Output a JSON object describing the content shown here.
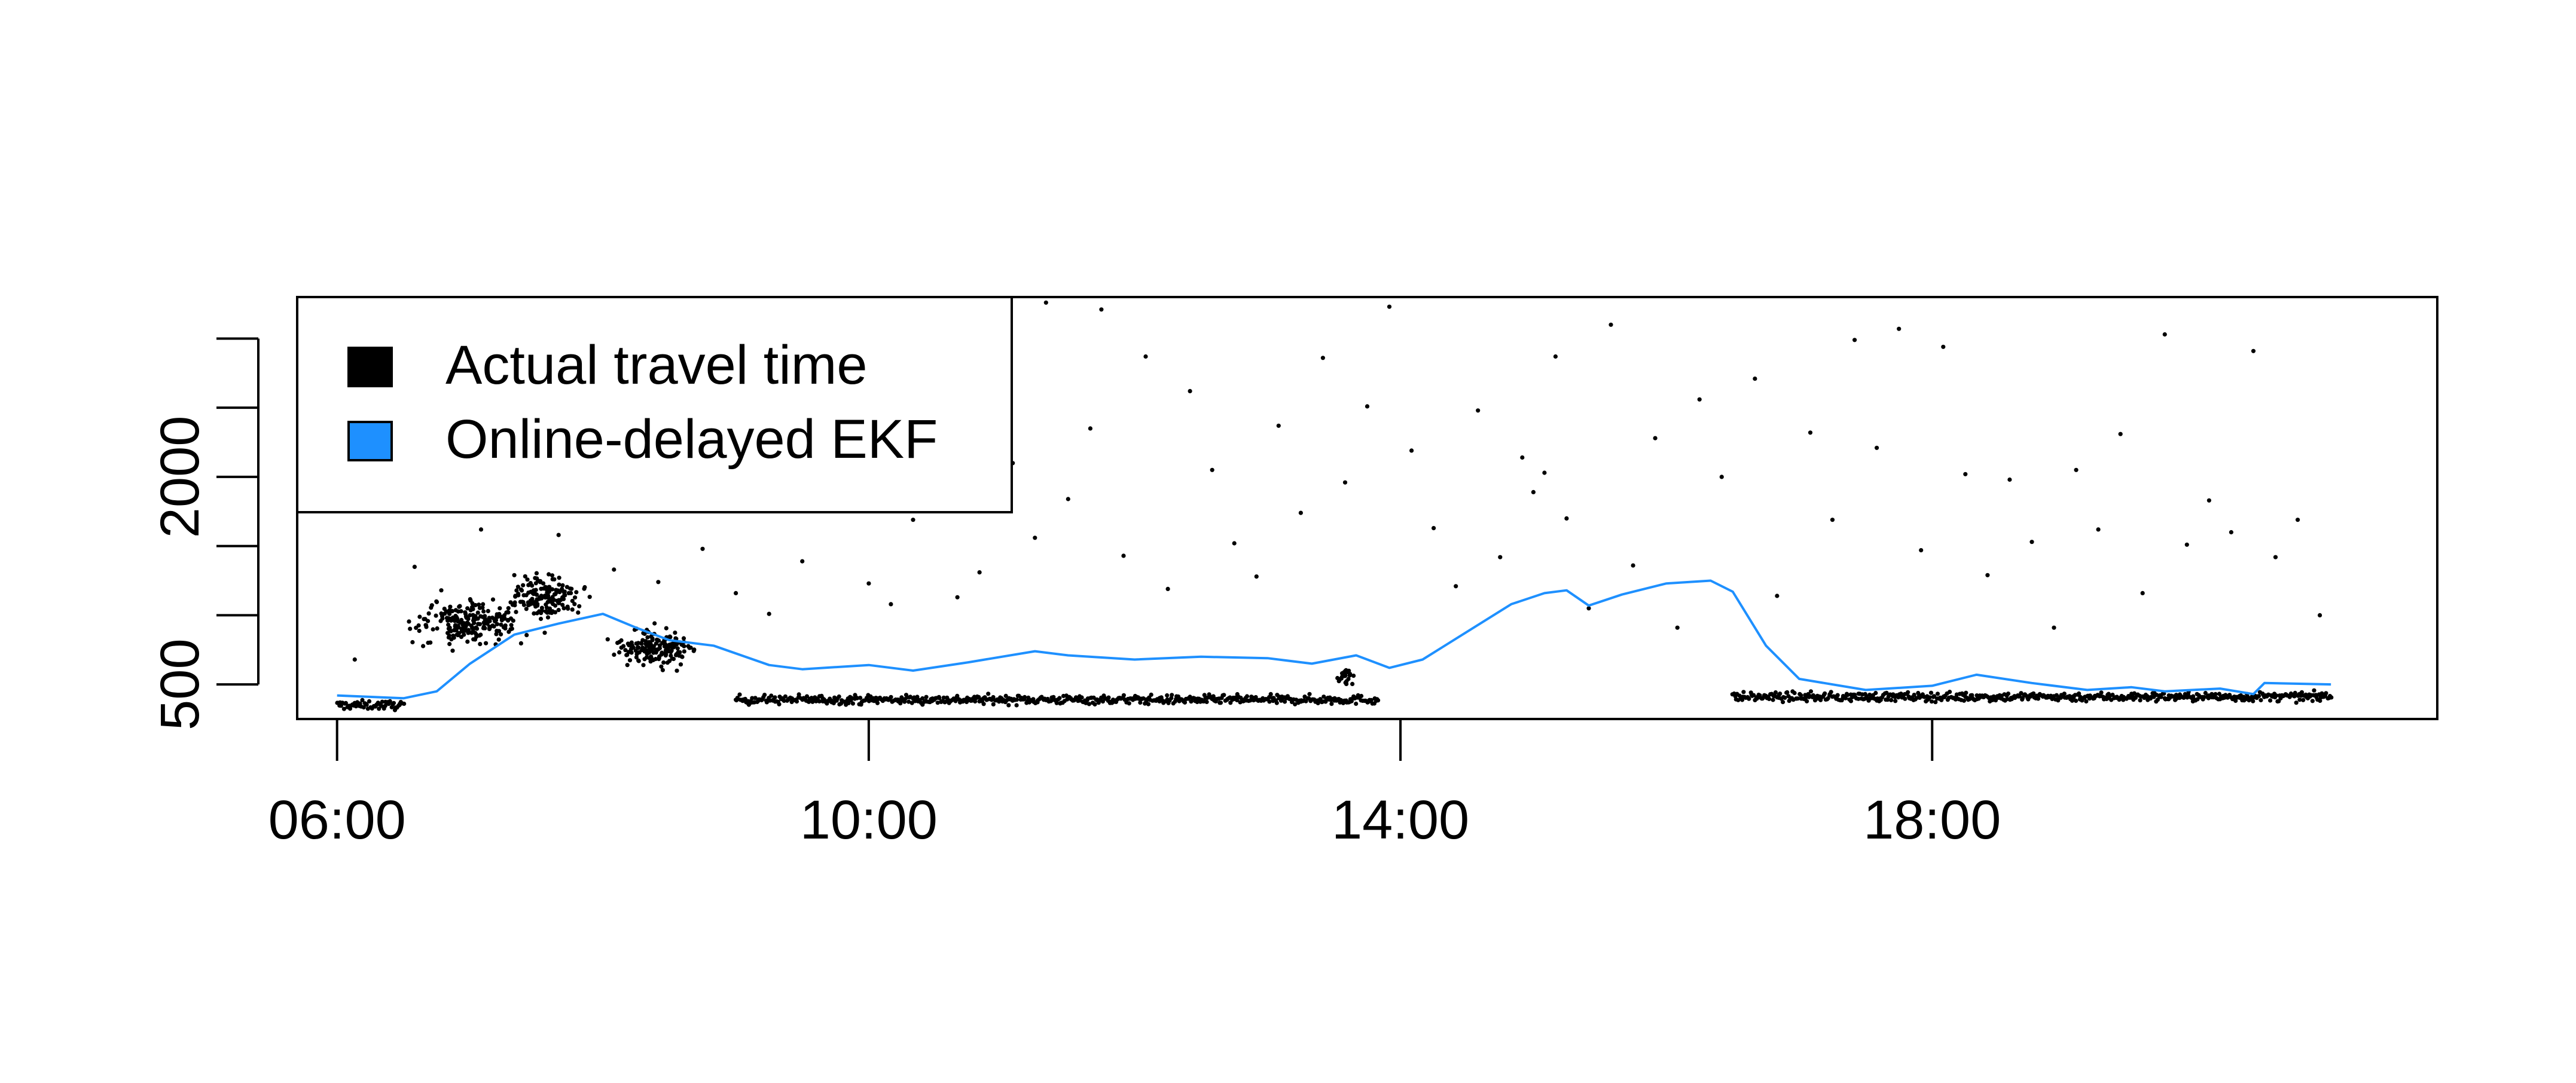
{
  "chart_data": {
    "type": "scatter",
    "title": "",
    "xlabel": "",
    "ylabel": "",
    "xlim": [
      "05:42",
      "21:48"
    ],
    "ylim": [
      250,
      3300
    ],
    "x_ticks": [
      "06:00",
      "10:00",
      "14:00",
      "18:00"
    ],
    "y_ticks": [
      500,
      1000,
      1500,
      2000,
      2500,
      3000
    ],
    "y_tick_labels": [
      {
        "value": 500,
        "label": "500"
      },
      {
        "value": 2000,
        "label": "2000"
      }
    ],
    "grid": false,
    "legend_position": "top-left",
    "legend": [
      {
        "label": "Actual travel time",
        "color": "#000000"
      },
      {
        "label": "Online-delayed EKF",
        "color": "#1E90FF"
      }
    ],
    "series": [
      {
        "name": "Actual travel time",
        "kind": "points",
        "color": "#000000",
        "baseline_segments": [
          {
            "from": "06:00",
            "to": "06:30",
            "level": 350
          },
          {
            "from": "09:00",
            "to": "13:50",
            "level": 390
          },
          {
            "from": "16:30",
            "to": "21:00",
            "level": 410
          }
        ],
        "clusters": [
          {
            "center": "07:00",
            "spread_min": 40,
            "level": 960,
            "spread": 260,
            "n": 220
          },
          {
            "center": "07:35",
            "spread_min": 25,
            "level": 1130,
            "spread": 280,
            "n": 150
          },
          {
            "center": "08:25",
            "spread_min": 30,
            "level": 760,
            "spread": 220,
            "n": 170
          },
          {
            "center": "13:35",
            "spread_min": 6,
            "level": 550,
            "spread": 110,
            "n": 25
          }
        ],
        "scattered_points": [
          {
            "t": "06:08",
            "v": 680
          },
          {
            "t": "06:35",
            "v": 1350
          },
          {
            "t": "06:52",
            "v": 1030
          },
          {
            "t": "07:05",
            "v": 1620
          },
          {
            "t": "07:20",
            "v": 1290
          },
          {
            "t": "07:40",
            "v": 1580
          },
          {
            "t": "08:05",
            "v": 1330
          },
          {
            "t": "08:25",
            "v": 1240
          },
          {
            "t": "08:45",
            "v": 1480
          },
          {
            "t": "09:00",
            "v": 1160
          },
          {
            "t": "09:15",
            "v": 1010
          },
          {
            "t": "09:30",
            "v": 1390
          },
          {
            "t": "09:45",
            "v": 3250
          },
          {
            "t": "10:00",
            "v": 1230
          },
          {
            "t": "10:10",
            "v": 1080
          },
          {
            "t": "10:20",
            "v": 1690
          },
          {
            "t": "10:30",
            "v": 2450
          },
          {
            "t": "10:40",
            "v": 1130
          },
          {
            "t": "10:50",
            "v": 1310
          },
          {
            "t": "10:55",
            "v": 3190
          },
          {
            "t": "11:05",
            "v": 2100
          },
          {
            "t": "11:15",
            "v": 1560
          },
          {
            "t": "11:20",
            "v": 3260
          },
          {
            "t": "11:30",
            "v": 1840
          },
          {
            "t": "11:40",
            "v": 2350
          },
          {
            "t": "11:45",
            "v": 3210
          },
          {
            "t": "11:55",
            "v": 1430
          },
          {
            "t": "12:05",
            "v": 2870
          },
          {
            "t": "12:15",
            "v": 1190
          },
          {
            "t": "12:25",
            "v": 2620
          },
          {
            "t": "12:35",
            "v": 2050
          },
          {
            "t": "12:45",
            "v": 1520
          },
          {
            "t": "12:55",
            "v": 1280
          },
          {
            "t": "13:05",
            "v": 2370
          },
          {
            "t": "13:15",
            "v": 1740
          },
          {
            "t": "13:25",
            "v": 2860
          },
          {
            "t": "13:35",
            "v": 1960
          },
          {
            "t": "13:45",
            "v": 2510
          },
          {
            "t": "13:55",
            "v": 3230
          },
          {
            "t": "14:05",
            "v": 2190
          },
          {
            "t": "14:15",
            "v": 1630
          },
          {
            "t": "14:25",
            "v": 1210
          },
          {
            "t": "14:35",
            "v": 2480
          },
          {
            "t": "14:45",
            "v": 1420
          },
          {
            "t": "14:55",
            "v": 2140
          },
          {
            "t": "15:00",
            "v": 1890
          },
          {
            "t": "15:05",
            "v": 2030
          },
          {
            "t": "15:10",
            "v": 2870
          },
          {
            "t": "15:15",
            "v": 1700
          },
          {
            "t": "15:25",
            "v": 1050
          },
          {
            "t": "15:35",
            "v": 3100
          },
          {
            "t": "15:45",
            "v": 1360
          },
          {
            "t": "15:55",
            "v": 2280
          },
          {
            "t": "16:05",
            "v": 910
          },
          {
            "t": "16:15",
            "v": 2560
          },
          {
            "t": "16:25",
            "v": 2000
          },
          {
            "t": "16:40",
            "v": 2710
          },
          {
            "t": "16:50",
            "v": 1140
          },
          {
            "t": "17:05",
            "v": 2320
          },
          {
            "t": "17:15",
            "v": 1690
          },
          {
            "t": "17:25",
            "v": 2990
          },
          {
            "t": "17:35",
            "v": 2210
          },
          {
            "t": "17:45",
            "v": 3070
          },
          {
            "t": "17:55",
            "v": 1470
          },
          {
            "t": "18:05",
            "v": 2940
          },
          {
            "t": "18:15",
            "v": 2020
          },
          {
            "t": "18:25",
            "v": 1290
          },
          {
            "t": "18:35",
            "v": 1980
          },
          {
            "t": "18:45",
            "v": 1530
          },
          {
            "t": "18:55",
            "v": 910
          },
          {
            "t": "19:05",
            "v": 2050
          },
          {
            "t": "19:15",
            "v": 1620
          },
          {
            "t": "19:25",
            "v": 2310
          },
          {
            "t": "19:35",
            "v": 1160
          },
          {
            "t": "19:45",
            "v": 3030
          },
          {
            "t": "19:55",
            "v": 1510
          },
          {
            "t": "20:05",
            "v": 1830
          },
          {
            "t": "20:15",
            "v": 1600
          },
          {
            "t": "20:25",
            "v": 2910
          },
          {
            "t": "20:35",
            "v": 1420
          },
          {
            "t": "20:45",
            "v": 1690
          },
          {
            "t": "20:55",
            "v": 1000
          }
        ]
      },
      {
        "name": "Online-delayed EKF",
        "kind": "line",
        "color": "#1E90FF",
        "points": [
          {
            "t": "06:00",
            "v": 420
          },
          {
            "t": "06:30",
            "v": 400
          },
          {
            "t": "06:45",
            "v": 450
          },
          {
            "t": "07:00",
            "v": 650
          },
          {
            "t": "07:20",
            "v": 860
          },
          {
            "t": "07:40",
            "v": 940
          },
          {
            "t": "08:00",
            "v": 1010
          },
          {
            "t": "08:15",
            "v": 910
          },
          {
            "t": "08:30",
            "v": 820
          },
          {
            "t": "08:50",
            "v": 780
          },
          {
            "t": "09:15",
            "v": 640
          },
          {
            "t": "09:30",
            "v": 610
          },
          {
            "t": "10:00",
            "v": 640
          },
          {
            "t": "10:20",
            "v": 600
          },
          {
            "t": "10:45",
            "v": 660
          },
          {
            "t": "11:15",
            "v": 740
          },
          {
            "t": "11:30",
            "v": 710
          },
          {
            "t": "12:00",
            "v": 680
          },
          {
            "t": "12:30",
            "v": 700
          },
          {
            "t": "13:00",
            "v": 690
          },
          {
            "t": "13:20",
            "v": 650
          },
          {
            "t": "13:40",
            "v": 710
          },
          {
            "t": "13:55",
            "v": 620
          },
          {
            "t": "14:10",
            "v": 680
          },
          {
            "t": "14:30",
            "v": 880
          },
          {
            "t": "14:50",
            "v": 1080
          },
          {
            "t": "15:05",
            "v": 1160
          },
          {
            "t": "15:15",
            "v": 1180
          },
          {
            "t": "15:25",
            "v": 1070
          },
          {
            "t": "15:40",
            "v": 1150
          },
          {
            "t": "16:00",
            "v": 1230
          },
          {
            "t": "16:20",
            "v": 1250
          },
          {
            "t": "16:30",
            "v": 1170
          },
          {
            "t": "16:45",
            "v": 780
          },
          {
            "t": "17:00",
            "v": 540
          },
          {
            "t": "17:30",
            "v": 460
          },
          {
            "t": "18:00",
            "v": 490
          },
          {
            "t": "18:20",
            "v": 570
          },
          {
            "t": "18:45",
            "v": 510
          },
          {
            "t": "19:10",
            "v": 460
          },
          {
            "t": "19:30",
            "v": 480
          },
          {
            "t": "19:45",
            "v": 450
          },
          {
            "t": "20:10",
            "v": 470
          },
          {
            "t": "20:25",
            "v": 430
          },
          {
            "t": "20:30",
            "v": 510
          },
          {
            "t": "21:00",
            "v": 500
          }
        ]
      }
    ]
  }
}
